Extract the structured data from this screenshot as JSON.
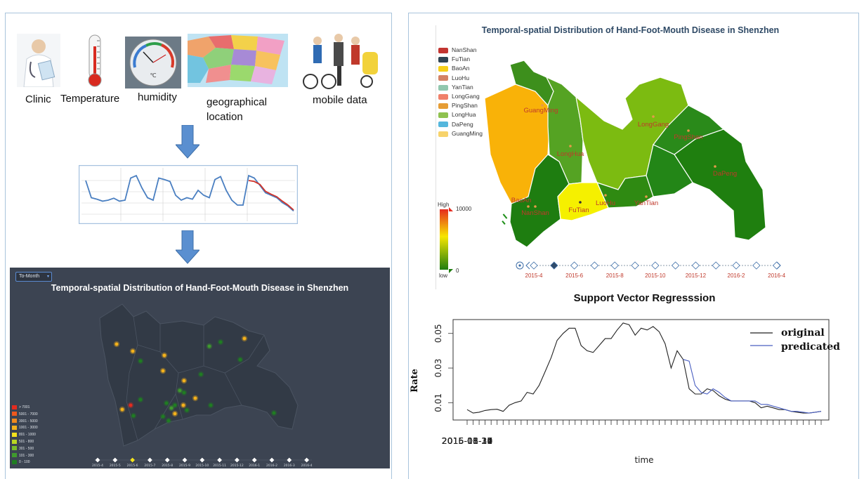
{
  "workflow": {
    "inputs": [
      {
        "name": "clinic",
        "label": "Clinic"
      },
      {
        "name": "temperature",
        "label": "Temperature"
      },
      {
        "name": "humidity",
        "label": "humidity"
      },
      {
        "name": "geo",
        "label": "geographical location"
      },
      {
        "name": "mobile",
        "label": "mobile data"
      }
    ],
    "humidity_dial": "℃"
  },
  "dark_map": {
    "dropdown_value": "To-Month",
    "title": "Temporal-spatial Distribution of Hand-Foot-Mouth Disease in Shenzhen",
    "legend": [
      {
        "label": "> 7001",
        "color": "#e52b1f"
      },
      {
        "label": "5001 - 7000",
        "color": "#f0591d"
      },
      {
        "label": "3001 - 5000",
        "color": "#f08a1d"
      },
      {
        "label": "1001 - 3000",
        "color": "#f5b21b"
      },
      {
        "label": "801 - 1000",
        "color": "#f4e31c"
      },
      {
        "label": "501 - 800",
        "color": "#b9d623"
      },
      {
        "label": "301 - 500",
        "color": "#79bc2a"
      },
      {
        "label": "101 - 300",
        "color": "#3f9a2d"
      },
      {
        "label": "0 - 100",
        "color": "#1f7d22"
      }
    ],
    "timeline": [
      "2015-4",
      "2015-5",
      "2015-6",
      "2015-7",
      "2015-8",
      "2015-9",
      "2015-10",
      "2015-11",
      "2015-12",
      "2016-1",
      "2016-2",
      "2016-3",
      "2016-4"
    ],
    "timeline_active_index": 2
  },
  "color_map": {
    "title": "Temporal-spatial Distribution of Hand-Foot-Mouth Disease in Shenzhen",
    "legend": [
      {
        "label": "NanShan",
        "color": "#c23531"
      },
      {
        "label": "FuTian",
        "color": "#2f4554"
      },
      {
        "label": "BaoAn",
        "color": "#f6cf1a"
      },
      {
        "label": "LuoHu",
        "color": "#d48265"
      },
      {
        "label": "YanTian",
        "color": "#91c7ae"
      },
      {
        "label": "LongGang",
        "color": "#f0806a"
      },
      {
        "label": "PingShan",
        "color": "#e69d35"
      },
      {
        "label": "LongHua",
        "color": "#8fc24f"
      },
      {
        "label": "DaPeng",
        "color": "#55b7dd"
      },
      {
        "label": "GuangMing",
        "color": "#f7d36b"
      }
    ],
    "district_labels": [
      "GuangMing",
      "LongGang",
      "PingShan",
      "LongHua",
      "DaPeng",
      "BaoAn",
      "NanShan",
      "FuTian",
      "LuoHu",
      "YanTian"
    ],
    "visualmap": {
      "high": "High",
      "max": "10000",
      "min": "0",
      "low": "low"
    },
    "timeline": [
      "2015-4",
      "2015-6",
      "2015-8",
      "2015-10",
      "2015-12",
      "2016-2",
      "2016-4"
    ],
    "timeline_active_index": 1
  },
  "chart_data": [
    {
      "type": "line",
      "title": "",
      "xlabel": "",
      "ylabel": "",
      "series": [
        {
          "values": [
            0.8,
            0.45,
            0.42,
            0.38,
            0.4,
            0.44,
            0.38,
            0.4,
            0.85,
            0.9,
            0.65,
            0.45,
            0.4,
            0.85,
            0.82,
            0.78,
            0.5,
            0.4,
            0.45,
            0.42,
            0.6,
            0.5,
            0.45,
            0.82,
            0.88,
            0.6,
            0.4,
            0.3,
            0.3,
            0.9,
            0.85,
            0.7,
            0.55,
            0.5,
            0.45,
            0.35,
            0.28,
            0.18
          ]
        },
        {
          "values": [
            null,
            null,
            null,
            null,
            null,
            null,
            null,
            null,
            null,
            null,
            null,
            null,
            null,
            null,
            null,
            null,
            null,
            null,
            null,
            null,
            null,
            null,
            null,
            null,
            null,
            null,
            null,
            null,
            null,
            0.8,
            0.78,
            0.72,
            0.58,
            0.52,
            0.47,
            0.38,
            0.3,
            0.2
          ]
        }
      ]
    },
    {
      "type": "line",
      "title": "Support Vector Regresssion",
      "xlabel": "time",
      "ylabel": "Rate",
      "x": [
        "2015-01-17",
        "2015-01-24",
        "2015-01-31",
        "2015-02-07",
        "2015-02-14",
        "2015-02-21",
        "2015-02-28",
        "2015-03-07",
        "2015-03-14",
        "2015-03-21",
        "2015-03-28",
        "2015-04-04",
        "2015-04-11",
        "2015-04-18",
        "2015-04-25",
        "2015-05-02",
        "2015-05-09",
        "2015-05-16",
        "2015-05-23",
        "2015-05-30",
        "2015-06-06",
        "2015-06-13",
        "2015-06-20",
        "2015-06-27",
        "2015-07-04",
        "2015-07-11",
        "2015-07-18",
        "2015-07-25",
        "2015-08-01",
        "2015-08-08",
        "2015-08-15",
        "2015-08-22",
        "2015-08-29",
        "2015-09-05",
        "2015-09-12",
        "2015-09-19",
        "2015-09-26",
        "2015-10-03",
        "2015-10-10",
        "2015-10-17",
        "2015-10-24",
        "2015-10-31",
        "2015-11-07",
        "2015-11-14",
        "2015-11-21",
        "2015-11-28",
        "2015-12-05",
        "2015-12-12",
        "2015-12-19",
        "2015-12-26",
        "2016-01-02",
        "2016-01-09",
        "2016-01-16",
        "2016-01-23",
        "2016-01-30",
        "2016-02-06",
        "2016-02-13",
        "2016-02-20",
        "2016-02-27",
        "2016-03-05"
      ],
      "x_ticks": [
        "2015-01-17",
        "2015-03-29",
        "2015-06-14",
        "2015-08-30",
        "2015-11-15",
        "2016-01-31"
      ],
      "y_ticks": [
        "0.01",
        "0.03",
        "0.05"
      ],
      "ylim": [
        0.0,
        0.058
      ],
      "series": [
        {
          "name": "original",
          "color": "#222222",
          "values": [
            0.006,
            0.004,
            0.0045,
            0.0055,
            0.006,
            0.0062,
            0.005,
            0.0085,
            0.01,
            0.011,
            0.016,
            0.015,
            0.02,
            0.028,
            0.036,
            0.046,
            0.05,
            0.053,
            0.053,
            0.043,
            0.04,
            0.039,
            0.043,
            0.047,
            0.047,
            0.052,
            0.056,
            0.055,
            0.049,
            0.053,
            0.052,
            0.054,
            0.051,
            0.044,
            0.03,
            0.04,
            0.035,
            0.018,
            0.015,
            0.015,
            0.018,
            0.017,
            0.014,
            0.012,
            0.011,
            0.011,
            0.011,
            0.011,
            0.01,
            0.007,
            0.008,
            0.007,
            0.006,
            0.006,
            0.005,
            0.0045,
            0.004,
            0.004,
            0.0045,
            0.005
          ]
        },
        {
          "name": "predicated",
          "color": "#4a5fc1",
          "values": [
            null,
            null,
            null,
            null,
            null,
            null,
            null,
            null,
            null,
            null,
            null,
            null,
            null,
            null,
            null,
            null,
            null,
            null,
            null,
            null,
            null,
            null,
            null,
            null,
            null,
            null,
            null,
            null,
            null,
            null,
            null,
            null,
            null,
            null,
            null,
            null,
            0.035,
            0.034,
            0.02,
            0.016,
            0.015,
            0.018,
            0.016,
            0.013,
            0.011,
            0.011,
            0.011,
            0.011,
            0.011,
            0.009,
            0.009,
            0.008,
            0.007,
            0.006,
            0.005,
            0.005,
            0.0045,
            0.004,
            0.0045,
            0.005
          ]
        }
      ]
    }
  ]
}
